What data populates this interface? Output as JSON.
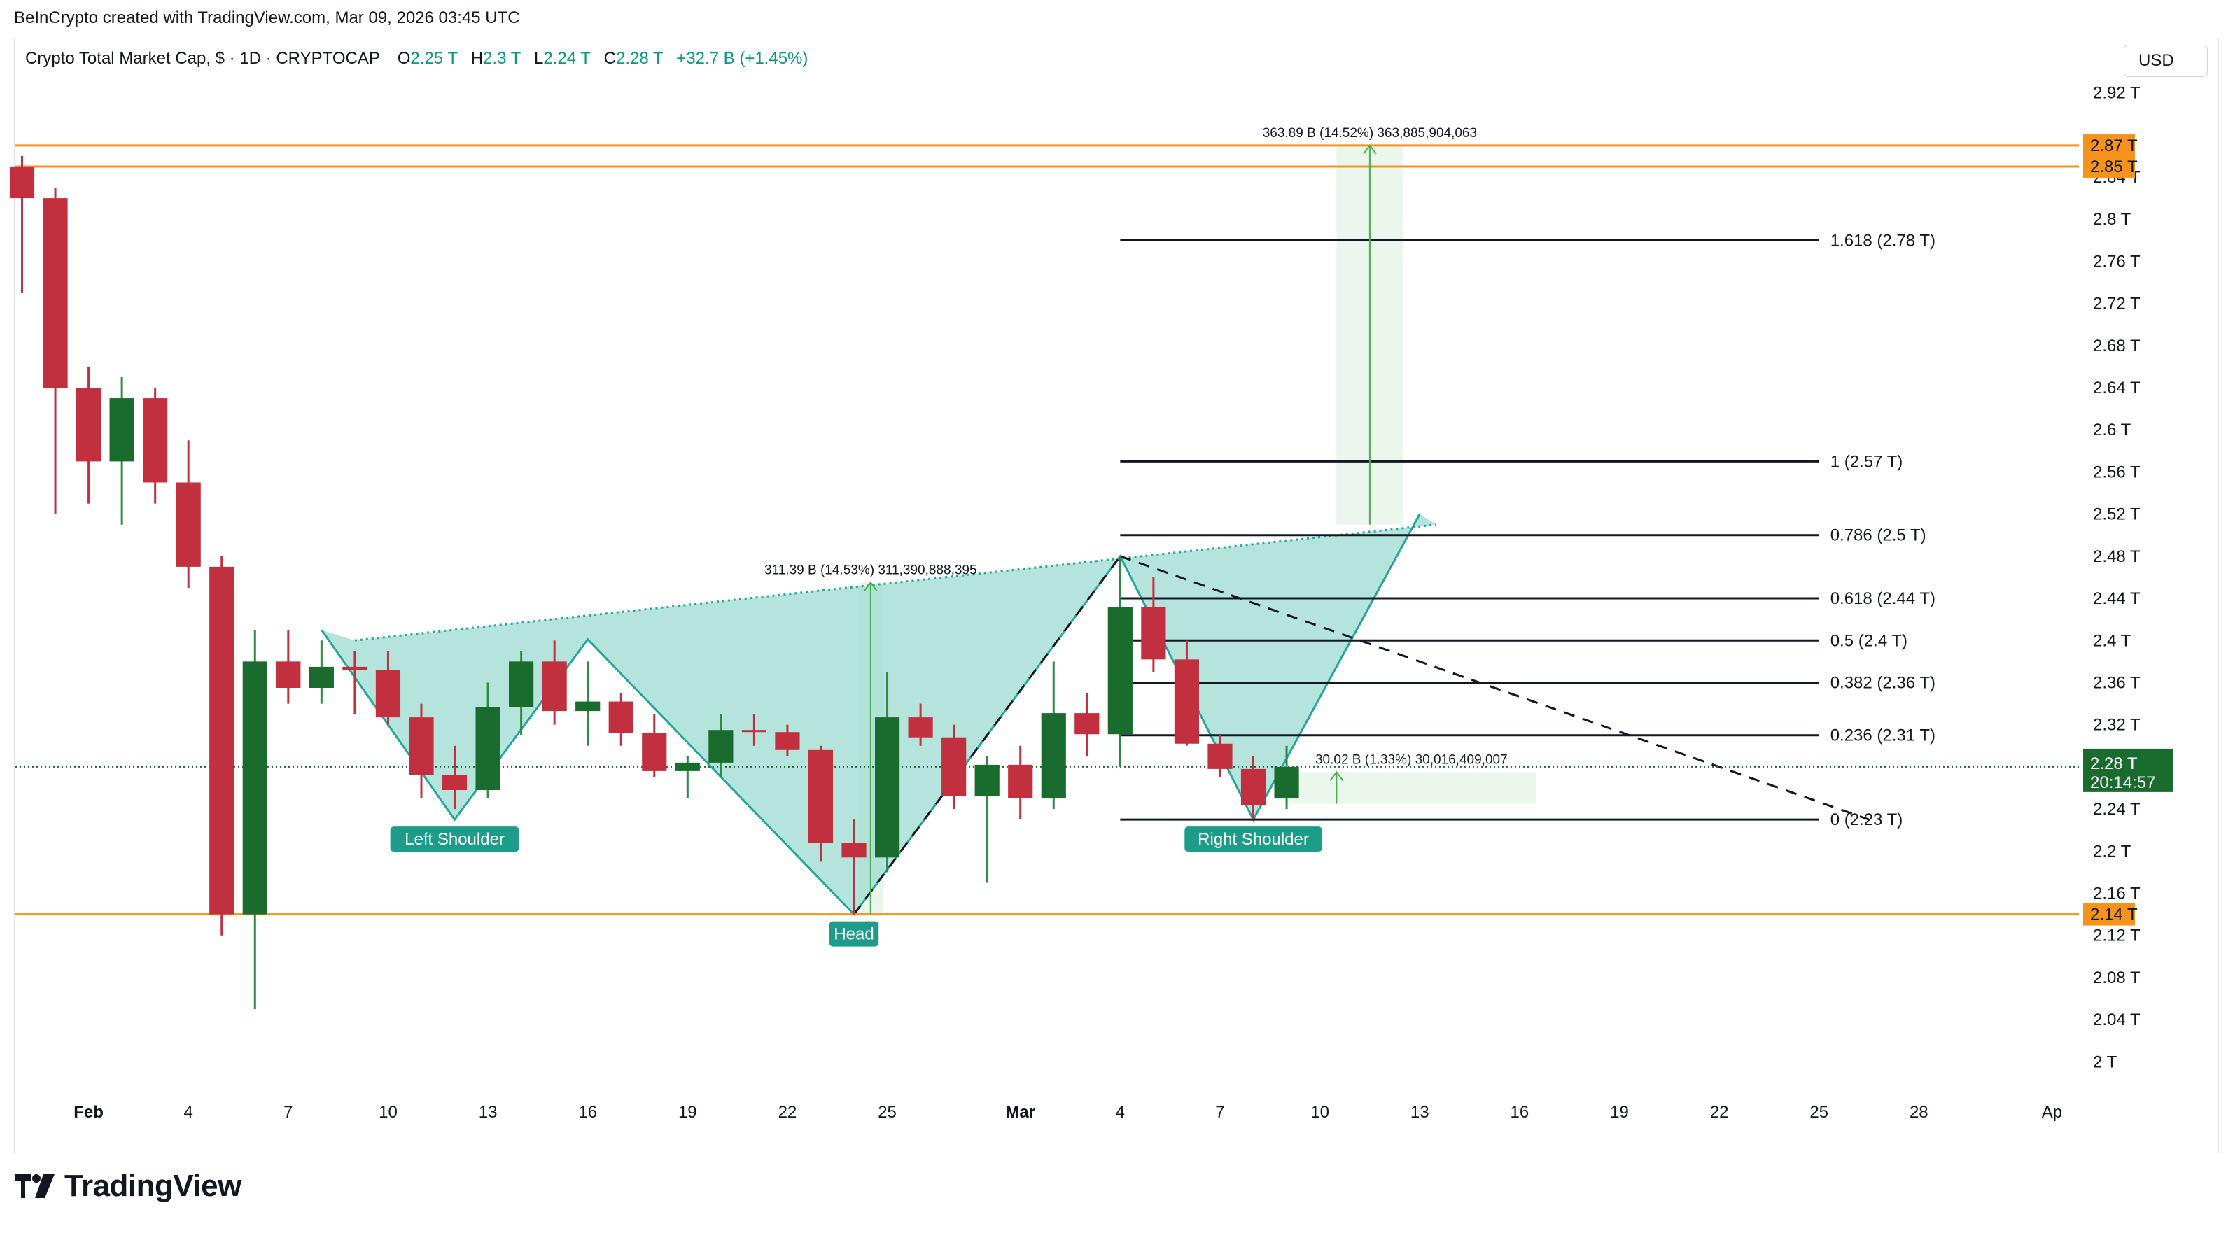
{
  "header": {
    "attribution": "BeInCrypto created with TradingView.com, Mar 09, 2026 03:45 UTC"
  },
  "legend": {
    "symbol": "Crypto Total Market Cap, $ · 1D · CRYPTOCAP",
    "o_label": "O",
    "o_value": "2.25 T",
    "h_label": "H",
    "h_value": "2.3 T",
    "l_label": "L",
    "l_value": "2.24 T",
    "c_label": "C",
    "c_value": "2.28 T",
    "change": "+32.7 B (+1.45%)"
  },
  "currency_button": "USD",
  "brand": {
    "name": "TradingView"
  },
  "colors": {
    "up": "#1a6b2e",
    "down": "#c22f3e",
    "wick_up": "#2e8b45",
    "wick_down": "#c22f3e",
    "pattern_fill": "#a3ddd3",
    "pattern_line": "#26a69a",
    "orange": "#f7931a",
    "price_tag": "#1a6b2e",
    "measure_green": "#4caf50"
  },
  "chart_data": {
    "type": "candlestick",
    "title": "Crypto Total Market Cap, $ · 1D · CRYPTOCAP",
    "y_unit": "T",
    "ylim": [
      1.965,
      2.935
    ],
    "y_ticks": [
      2.0,
      2.04,
      2.08,
      2.12,
      2.16,
      2.2,
      2.24,
      2.28,
      2.32,
      2.36,
      2.4,
      2.44,
      2.48,
      2.52,
      2.56,
      2.6,
      2.64,
      2.68,
      2.72,
      2.76,
      2.8,
      2.84,
      2.92
    ],
    "y_tick_labels": [
      "2 T",
      "2.04 T",
      "2.08 T",
      "2.12 T",
      "2.16 T",
      "2.2 T",
      "2.24 T",
      "2.28 T",
      "2.32 T",
      "2.36 T",
      "2.4 T",
      "2.44 T",
      "2.48 T",
      "2.52 T",
      "2.56 T",
      "2.6 T",
      "2.64 T",
      "2.68 T",
      "2.72 T",
      "2.76 T",
      "2.8 T",
      "2.84 T",
      "2.92 T"
    ],
    "x_tick_labels": [
      "Feb",
      "4",
      "7",
      "10",
      "13",
      "16",
      "19",
      "22",
      "25",
      "Mar",
      "4",
      "7",
      "10",
      "13",
      "16",
      "19",
      "22",
      "25",
      "28",
      "Ap"
    ],
    "x_tick_day_index": [
      0,
      3,
      6,
      9,
      12,
      15,
      18,
      21,
      24,
      28,
      31,
      34,
      37,
      40,
      43,
      46,
      49,
      52,
      55,
      59
    ],
    "x_domain": [
      -2.2,
      59.6
    ],
    "candles": [
      {
        "date": "Jan 31",
        "i": -2,
        "o": 2.85,
        "h": 2.86,
        "l": 2.73,
        "c": 2.82
      },
      {
        "date": "Feb 1",
        "i": -1,
        "o": 2.82,
        "h": 2.83,
        "l": 2.52,
        "c": 2.64
      },
      {
        "date": "Feb 2",
        "i": 0,
        "o": 2.64,
        "h": 2.66,
        "l": 2.53,
        "c": 2.57
      },
      {
        "date": "Feb 3",
        "i": 1,
        "o": 2.57,
        "h": 2.65,
        "l": 2.51,
        "c": 2.63
      },
      {
        "date": "Feb 4",
        "i": 2,
        "o": 2.63,
        "h": 2.64,
        "l": 2.53,
        "c": 2.55
      },
      {
        "date": "Feb 5",
        "i": 3,
        "o": 2.55,
        "h": 2.59,
        "l": 2.45,
        "c": 2.47
      },
      {
        "date": "Feb 6",
        "i": 4,
        "o": 2.47,
        "h": 2.48,
        "l": 2.12,
        "c": 2.14
      },
      {
        "date": "Feb 7",
        "i": 5,
        "o": 2.14,
        "h": 2.41,
        "l": 2.05,
        "c": 2.38
      },
      {
        "date": "Feb 8",
        "i": 6,
        "o": 2.38,
        "h": 2.41,
        "l": 2.34,
        "c": 2.355
      },
      {
        "date": "Feb 9",
        "i": 7,
        "o": 2.355,
        "h": 2.4,
        "l": 2.34,
        "c": 2.375
      },
      {
        "date": "Feb 10",
        "i": 8,
        "o": 2.375,
        "h": 2.39,
        "l": 2.33,
        "c": 2.372
      },
      {
        "date": "Feb 11",
        "i": 9,
        "o": 2.372,
        "h": 2.39,
        "l": 2.32,
        "c": 2.327
      },
      {
        "date": "Feb 12",
        "i": 10,
        "o": 2.327,
        "h": 2.34,
        "l": 2.25,
        "c": 2.272
      },
      {
        "date": "Feb 13",
        "i": 11,
        "o": 2.272,
        "h": 2.3,
        "l": 2.24,
        "c": 2.258
      },
      {
        "date": "Feb 14",
        "i": 12,
        "o": 2.258,
        "h": 2.36,
        "l": 2.25,
        "c": 2.337
      },
      {
        "date": "Feb 15",
        "i": 13,
        "o": 2.337,
        "h": 2.39,
        "l": 2.31,
        "c": 2.38
      },
      {
        "date": "Feb 16",
        "i": 14,
        "o": 2.38,
        "h": 2.4,
        "l": 2.32,
        "c": 2.333
      },
      {
        "date": "Feb 17",
        "i": 15,
        "o": 2.333,
        "h": 2.38,
        "l": 2.3,
        "c": 2.342
      },
      {
        "date": "Feb 18",
        "i": 16,
        "o": 2.342,
        "h": 2.35,
        "l": 2.3,
        "c": 2.312
      },
      {
        "date": "Feb 19",
        "i": 17,
        "o": 2.312,
        "h": 2.33,
        "l": 2.27,
        "c": 2.276
      },
      {
        "date": "Feb 20",
        "i": 18,
        "o": 2.276,
        "h": 2.29,
        "l": 2.25,
        "c": 2.284
      },
      {
        "date": "Feb 21",
        "i": 19,
        "o": 2.284,
        "h": 2.33,
        "l": 2.27,
        "c": 2.315
      },
      {
        "date": "Feb 22",
        "i": 20,
        "o": 2.315,
        "h": 2.33,
        "l": 2.3,
        "c": 2.313
      },
      {
        "date": "Feb 23",
        "i": 21,
        "o": 2.313,
        "h": 2.32,
        "l": 2.29,
        "c": 2.296
      },
      {
        "date": "Feb 24",
        "i": 22,
        "o": 2.296,
        "h": 2.3,
        "l": 2.19,
        "c": 2.208
      },
      {
        "date": "Feb 25",
        "i": 23,
        "o": 2.208,
        "h": 2.23,
        "l": 2.14,
        "c": 2.194
      },
      {
        "date": "Feb 26",
        "i": 24,
        "o": 2.194,
        "h": 2.37,
        "l": 2.18,
        "c": 2.327
      },
      {
        "date": "Feb 27",
        "i": 25,
        "o": 2.327,
        "h": 2.34,
        "l": 2.3,
        "c": 2.308
      },
      {
        "date": "Feb 28",
        "i": 26,
        "o": 2.308,
        "h": 2.32,
        "l": 2.24,
        "c": 2.252
      },
      {
        "date": "Mar 1",
        "i": 27,
        "o": 2.252,
        "h": 2.29,
        "l": 2.17,
        "c": 2.282
      },
      {
        "date": "Mar 2",
        "i": 28,
        "o": 2.282,
        "h": 2.3,
        "l": 2.23,
        "c": 2.25
      },
      {
        "date": "Mar 3",
        "i": 29,
        "o": 2.25,
        "h": 2.38,
        "l": 2.24,
        "c": 2.331
      },
      {
        "date": "Mar 4",
        "i": 30,
        "o": 2.331,
        "h": 2.35,
        "l": 2.29,
        "c": 2.311
      },
      {
        "date": "Mar 5",
        "i": 31,
        "o": 2.311,
        "h": 2.48,
        "l": 2.28,
        "c": 2.432
      },
      {
        "date": "Mar 6",
        "i": 32,
        "o": 2.432,
        "h": 2.46,
        "l": 2.37,
        "c": 2.382
      },
      {
        "date": "Mar 7",
        "i": 33,
        "o": 2.382,
        "h": 2.4,
        "l": 2.3,
        "c": 2.302
      },
      {
        "date": "Mar 8",
        "i": 34,
        "o": 2.302,
        "h": 2.31,
        "l": 2.27,
        "c": 2.278
      },
      {
        "date": "Mar 9",
        "i": 35,
        "o": 2.278,
        "h": 2.29,
        "l": 2.23,
        "c": 2.244
      },
      {
        "date": "Mar 10",
        "i": 36,
        "o": 2.25,
        "h": 2.3,
        "l": 2.24,
        "c": 2.28
      }
    ],
    "horizontal_levels": [
      {
        "value": 2.87,
        "label": "2.87 T",
        "color": "#f7931a"
      },
      {
        "value": 2.85,
        "label": "2.85 T",
        "color": "#f7931a"
      },
      {
        "value": 2.14,
        "label": "2.14 T",
        "color": "#f7931a"
      }
    ],
    "current_price": {
      "value": 2.28,
      "label": "2.28 T",
      "countdown": "20:14:57"
    },
    "fibonacci": {
      "x_start": 31,
      "x_end": 52,
      "levels": [
        {
          "ratio": 1.618,
          "value": 2.78,
          "label": "1.618 (2.78 T)"
        },
        {
          "ratio": 1,
          "value": 2.57,
          "label": "1 (2.57 T)"
        },
        {
          "ratio": 0.786,
          "value": 2.5,
          "label": "0.786 (2.5 T)"
        },
        {
          "ratio": 0.618,
          "value": 2.44,
          "label": "0.618 (2.44 T)"
        },
        {
          "ratio": 0.5,
          "value": 2.4,
          "label": "0.5 (2.4 T)"
        },
        {
          "ratio": 0.382,
          "value": 2.36,
          "label": "0.382 (2.36 T)"
        },
        {
          "ratio": 0.236,
          "value": 2.31,
          "label": "0.236 (2.31 T)"
        },
        {
          "ratio": 0,
          "value": 2.23,
          "label": "0 (2.23 T)"
        }
      ]
    },
    "pattern": {
      "name": "inverse head and shoulders",
      "points": [
        [
          7,
          2.41
        ],
        [
          11,
          2.23
        ],
        [
          15,
          2.401
        ],
        [
          23,
          2.14
        ],
        [
          31,
          2.48
        ],
        [
          35,
          2.23
        ],
        [
          40,
          2.52
        ]
      ],
      "neckline": [
        [
          8,
          2.4
        ],
        [
          40.5,
          2.51
        ]
      ],
      "labels": [
        {
          "text": "Left Shoulder",
          "x": 11,
          "y": 2.23
        },
        {
          "text": "Head",
          "x": 23,
          "y": 2.14
        },
        {
          "text": "Right Shoulder",
          "x": 35,
          "y": 2.23
        }
      ]
    },
    "trendlines": [
      {
        "style": "dashed",
        "from": [
          23,
          2.14
        ],
        "to": [
          31,
          2.48
        ]
      },
      {
        "style": "dashed",
        "from": [
          31,
          2.48
        ],
        "to": [
          53.5,
          2.23
        ]
      }
    ],
    "measurements": [
      {
        "label": "311.39 B (14.53%) 311,390,888,395",
        "x": 23.5,
        "from": 2.14,
        "to": 2.455
      },
      {
        "label": "363.89 B (14.52%) 363,885,904,063",
        "x": 38.5,
        "from": 2.51,
        "to": 2.87,
        "box_x": [
          37.5,
          39.5
        ]
      },
      {
        "label": "30.02 B (1.33%) 30,016,409,007",
        "x": 37.5,
        "from": 2.245,
        "to": 2.275,
        "box_x": [
          36,
          43.5
        ]
      }
    ]
  }
}
